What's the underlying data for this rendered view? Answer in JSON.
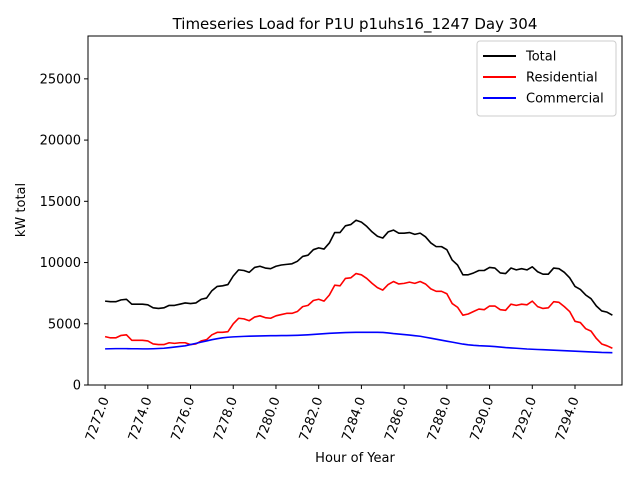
{
  "chart_data": {
    "type": "line",
    "title": "Timeseries Load for P1U p1uhs16_1247  Day 304",
    "xlabel": "Hour of Year",
    "ylabel": "kW total",
    "xlim": [
      7271.2,
      7296.2
    ],
    "ylim": [
      0,
      28500
    ],
    "x_ticks": [
      7272,
      7274,
      7276,
      7278,
      7280,
      7282,
      7284,
      7286,
      7288,
      7290,
      7292,
      7294
    ],
    "x_tick_labels": [
      "7272.0",
      "7274.0",
      "7276.0",
      "7278.0",
      "7280.0",
      "7282.0",
      "7284.0",
      "7286.0",
      "7288.0",
      "7290.0",
      "7292.0",
      "7294.0"
    ],
    "y_ticks": [
      0,
      5000,
      10000,
      15000,
      20000,
      25000
    ],
    "y_tick_labels": [
      "0",
      "5000",
      "10000",
      "15000",
      "20000",
      "25000"
    ],
    "grid": false,
    "legend_position": "upper right",
    "x_start": 7272,
    "x_step": 0.25,
    "series": [
      {
        "name": "Total",
        "color": "#000000",
        "values": [
          6850,
          6800,
          6800,
          6950,
          7000,
          6600,
          6600,
          6600,
          6550,
          6300,
          6250,
          6300,
          6500,
          6500,
          6600,
          6700,
          6650,
          6700,
          7000,
          7100,
          7700,
          8050,
          8100,
          8200,
          8900,
          9400,
          9350,
          9200,
          9600,
          9700,
          9550,
          9500,
          9700,
          9800,
          9850,
          9900,
          10100,
          10500,
          10600,
          11050,
          11200,
          11100,
          11600,
          12450,
          12450,
          13000,
          13100,
          13450,
          13300,
          12950,
          12500,
          12150,
          12000,
          12500,
          12650,
          12400,
          12400,
          12450,
          12300,
          12400,
          12100,
          11600,
          11300,
          11300,
          11050,
          10200,
          9800,
          9000,
          9000,
          9150,
          9350,
          9350,
          9600,
          9550,
          9150,
          9100,
          9550,
          9400,
          9500,
          9400,
          9650,
          9250,
          9050,
          9050,
          9550,
          9500,
          9200,
          8750,
          8050,
          7800,
          7350,
          7050,
          6450,
          6050,
          5950,
          5700
        ]
      },
      {
        "name": "Residential",
        "color": "#ff0000",
        "values": [
          3950,
          3850,
          3850,
          4050,
          4100,
          3650,
          3650,
          3650,
          3600,
          3350,
          3300,
          3300,
          3450,
          3400,
          3450,
          3450,
          3300,
          3350,
          3600,
          3700,
          4100,
          4300,
          4300,
          4350,
          5000,
          5450,
          5400,
          5250,
          5550,
          5650,
          5500,
          5450,
          5650,
          5750,
          5850,
          5850,
          6000,
          6400,
          6500,
          6900,
          7000,
          6850,
          7350,
          8150,
          8100,
          8700,
          8750,
          9100,
          9000,
          8700,
          8300,
          7950,
          7750,
          8200,
          8450,
          8250,
          8300,
          8400,
          8300,
          8450,
          8250,
          7850,
          7650,
          7650,
          7450,
          6650,
          6350,
          5700,
          5800,
          6000,
          6200,
          6150,
          6450,
          6450,
          6150,
          6100,
          6600,
          6500,
          6600,
          6550,
          6850,
          6400,
          6250,
          6300,
          6800,
          6750,
          6400,
          6000,
          5200,
          5100,
          4600,
          4400,
          3800,
          3350,
          3200,
          3000
        ]
      },
      {
        "name": "Commercial",
        "color": "#0000ff",
        "values": [
          2950,
          2960,
          2970,
          2970,
          2970,
          2960,
          2960,
          2950,
          2950,
          2960,
          2980,
          3000,
          3050,
          3100,
          3150,
          3200,
          3300,
          3400,
          3500,
          3600,
          3700,
          3780,
          3850,
          3900,
          3930,
          3950,
          3970,
          3990,
          4000,
          4010,
          4020,
          4030,
          4030,
          4040,
          4040,
          4050,
          4060,
          4080,
          4100,
          4130,
          4160,
          4190,
          4220,
          4240,
          4260,
          4280,
          4290,
          4300,
          4300,
          4300,
          4300,
          4300,
          4290,
          4250,
          4200,
          4160,
          4120,
          4080,
          4030,
          3980,
          3900,
          3820,
          3740,
          3660,
          3580,
          3500,
          3420,
          3340,
          3280,
          3240,
          3210,
          3190,
          3170,
          3140,
          3100,
          3060,
          3030,
          3000,
          2970,
          2940,
          2920,
          2900,
          2880,
          2860,
          2840,
          2820,
          2800,
          2780,
          2760,
          2740,
          2720,
          2700,
          2680,
          2660,
          2650,
          2640
        ]
      }
    ]
  }
}
